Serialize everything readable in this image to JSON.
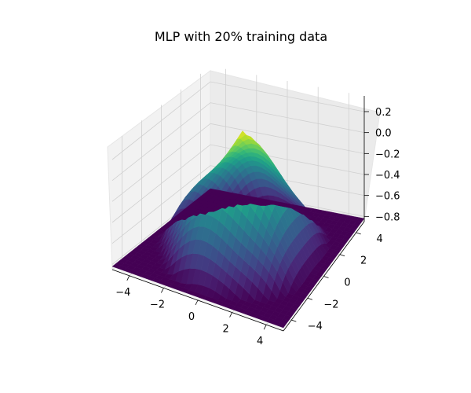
{
  "chart_data": {
    "type": "surface3d",
    "title": "MLP with 20% training data",
    "xlabel": "",
    "ylabel": "",
    "zlabel": "",
    "x_ticks": [
      "−4",
      "−2",
      "0",
      "2",
      "4"
    ],
    "y_ticks": [
      "−4",
      "−2",
      "0",
      "2",
      "4"
    ],
    "z_ticks": [
      "−0.8",
      "−0.6",
      "−0.4",
      "−0.2",
      "0.0",
      "0.2"
    ],
    "xlim": [
      -5,
      5
    ],
    "ylim": [
      -5,
      5
    ],
    "zlim": [
      -0.85,
      0.35
    ],
    "colormap": "viridis",
    "grid": true,
    "surface_samples": [
      {
        "x": 0,
        "y": 0,
        "z": 0.32
      },
      {
        "x": -5,
        "y": -5,
        "z": -0.78
      },
      {
        "x": 5,
        "y": -5,
        "z": -0.82
      },
      {
        "x": 5,
        "y": 5,
        "z": -0.7
      },
      {
        "x": -5,
        "y": 5,
        "z": -0.55
      },
      {
        "x": 0,
        "y": -5,
        "z": -0.3
      },
      {
        "x": 5,
        "y": 0,
        "z": -0.35
      },
      {
        "x": 0,
        "y": 5,
        "z": -0.25
      },
      {
        "x": -5,
        "y": 0,
        "z": -0.3
      }
    ]
  }
}
